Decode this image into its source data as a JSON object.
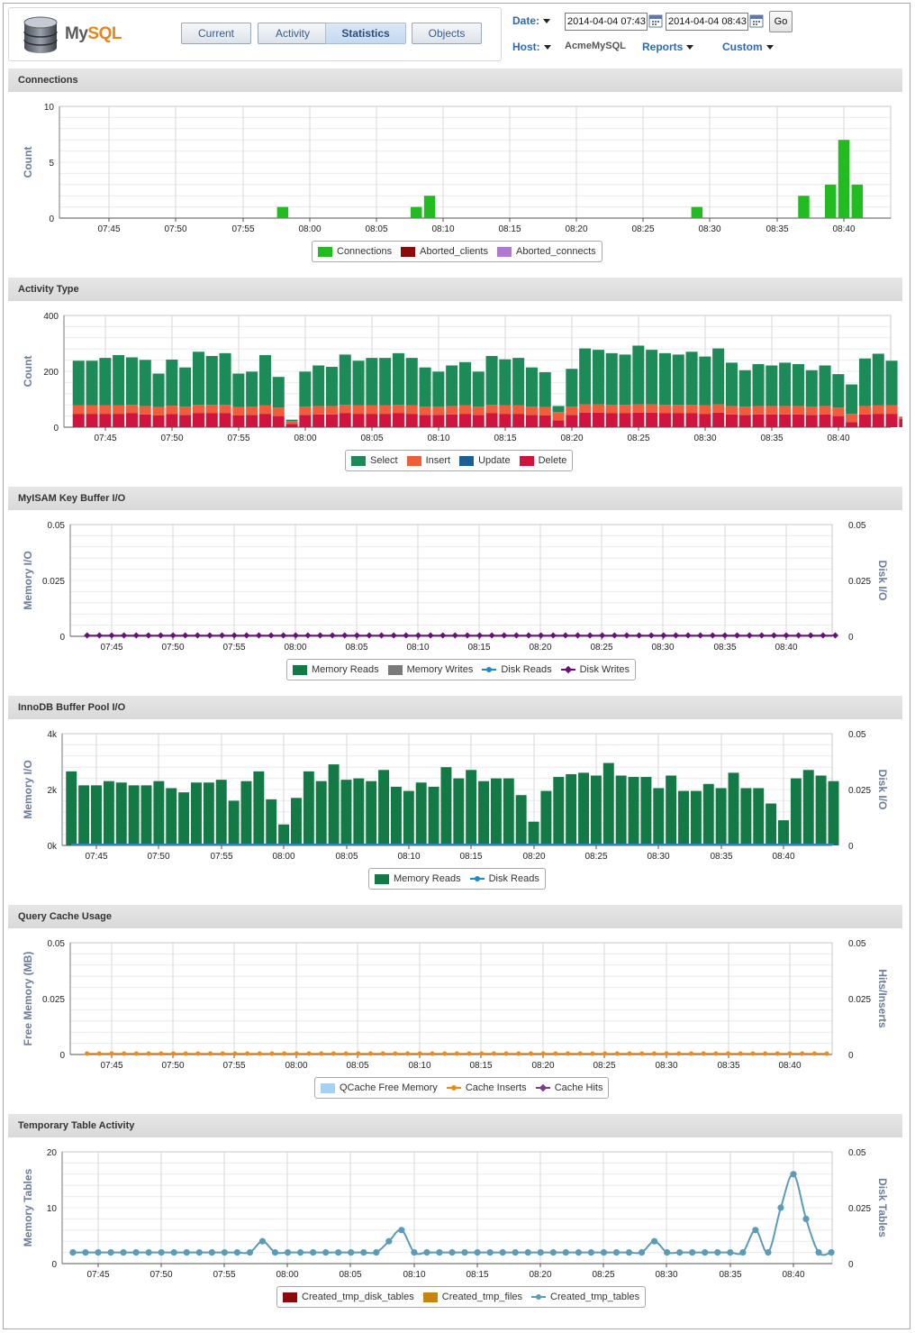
{
  "app": {
    "logo_prefix": "My",
    "logo_suffix": "SQL",
    "tabs": [
      {
        "label": "Current",
        "active": false
      },
      {
        "label": "Activity",
        "active": false
      },
      {
        "label": "Statistics",
        "active": true
      },
      {
        "label": "Objects",
        "active": false
      }
    ]
  },
  "controls": {
    "date_label": "Date:",
    "date_from": "2014-04-04 07:43",
    "date_to": "2014-04-04 08:43",
    "go_label": "Go",
    "host_label": "Host:",
    "host_value": "AcmeMySQL",
    "reports_label": "Reports",
    "custom_label": "Custom"
  },
  "colors": {
    "connections": "#22bb22",
    "aborted_clients": "#8b0a0a",
    "aborted_connects": "#b07ad0",
    "select": "#1d8b58",
    "insert": "#ef5d3b",
    "update": "#1b5f95",
    "delete": "#d0143e",
    "memory_reads": "#137a45",
    "memory_writes": "#7a7a7a",
    "disk_reads": "#1f8ac9",
    "disk_writes": "#6a0f7a",
    "qcache_free": "#a8d0f0",
    "cache_inserts": "#f08a17",
    "cache_hits": "#7b3e88",
    "tmp_disk": "#8b0a0a",
    "tmp_files": "#c88413",
    "tmp_tables": "#5b9bb7"
  },
  "x_ticks": [
    "07:45",
    "07:50",
    "07:55",
    "08:00",
    "08:05",
    "08:10",
    "08:15",
    "08:20",
    "08:25",
    "08:30",
    "08:35",
    "08:40"
  ],
  "chart_data": [
    {
      "type": "bar",
      "title": "Connections",
      "ylabel": "Count",
      "ylim": [
        0,
        10
      ],
      "yticks": [
        "0",
        "5",
        "10"
      ],
      "legend": [
        "Connections",
        "Aborted_clients",
        "Aborted_connects"
      ],
      "x_start_minute": 43,
      "series": [
        {
          "name": "Connections",
          "values": [
            0,
            0,
            0,
            0,
            0,
            0,
            0,
            0,
            0,
            0,
            0,
            0,
            0,
            0,
            0,
            1,
            0,
            0,
            0,
            0,
            0,
            0,
            0,
            0,
            0,
            1,
            2,
            0,
            0,
            0,
            0,
            0,
            0,
            0,
            0,
            0,
            0,
            0,
            0,
            0,
            0,
            0,
            0,
            0,
            0,
            0,
            1,
            0,
            0,
            0,
            0,
            0,
            0,
            0,
            2,
            0,
            3,
            7,
            3,
            0,
            0
          ]
        },
        {
          "name": "Aborted_clients",
          "values": []
        },
        {
          "name": "Aborted_connects",
          "values": []
        }
      ]
    },
    {
      "type": "bar",
      "title": "Activity Type",
      "ylabel": "Count",
      "ylim": [
        0,
        400
      ],
      "yticks": [
        "0",
        "200",
        "400"
      ],
      "legend": [
        "Select",
        "Insert",
        "Update",
        "Delete"
      ],
      "stacked": true,
      "x_start_minute": 43,
      "series": [
        {
          "name": "Select",
          "values": [
            160,
            160,
            170,
            180,
            170,
            165,
            120,
            165,
            140,
            190,
            175,
            185,
            120,
            125,
            180,
            110,
            5,
            125,
            145,
            140,
            180,
            160,
            170,
            170,
            185,
            170,
            140,
            125,
            145,
            155,
            125,
            175,
            165,
            170,
            140,
            125,
            22,
            135,
            200,
            195,
            185,
            180,
            210,
            195,
            185,
            180,
            190,
            175,
            200,
            155,
            130,
            150,
            145,
            155,
            150,
            130,
            145,
            120,
            105,
            170,
            185,
            160,
            0
          ]
        },
        {
          "name": "Insert",
          "values": [
            30,
            30,
            30,
            30,
            30,
            30,
            30,
            30,
            30,
            30,
            30,
            30,
            30,
            30,
            30,
            30,
            10,
            30,
            30,
            30,
            30,
            30,
            30,
            30,
            30,
            30,
            30,
            30,
            30,
            30,
            30,
            30,
            30,
            30,
            30,
            30,
            30,
            30,
            30,
            30,
            30,
            30,
            30,
            30,
            30,
            30,
            30,
            30,
            30,
            30,
            30,
            30,
            30,
            30,
            30,
            30,
            30,
            30,
            30,
            30,
            30,
            30,
            8
          ]
        },
        {
          "name": "Update",
          "values": []
        },
        {
          "name": "Delete",
          "values": [
            48,
            48,
            48,
            48,
            50,
            46,
            42,
            47,
            44,
            50,
            50,
            50,
            42,
            44,
            48,
            40,
            12,
            44,
            46,
            46,
            50,
            48,
            48,
            48,
            50,
            48,
            44,
            44,
            46,
            48,
            44,
            50,
            48,
            48,
            44,
            42,
            24,
            44,
            52,
            52,
            50,
            50,
            52,
            52,
            50,
            50,
            50,
            48,
            52,
            46,
            44,
            46,
            46,
            46,
            46,
            44,
            46,
            40,
            18,
            46,
            48,
            48,
            30
          ]
        }
      ]
    },
    {
      "type": "line",
      "title": "MyISAM Key Buffer I/O",
      "ylabel": "Memory I/O",
      "y2label": "Disk I/O",
      "ylim": [
        0,
        0.05
      ],
      "y2lim": [
        0,
        0.05
      ],
      "yticks": [
        "0",
        "0.025",
        "0.05"
      ],
      "y2ticks": [
        "0",
        "0.025",
        "0.05"
      ],
      "legend": [
        "Memory Reads",
        "Memory Writes",
        "Disk Reads",
        "Disk Writes"
      ],
      "x_start_minute": 43,
      "series": [
        {
          "name": "Memory Reads",
          "values": []
        },
        {
          "name": "Memory Writes",
          "values": []
        },
        {
          "name": "Disk Reads",
          "values": []
        },
        {
          "name": "Disk Writes",
          "constant": 0,
          "count": 62
        }
      ]
    },
    {
      "type": "bar",
      "title": "InnoDB Buffer Pool I/O",
      "ylabel": "Memory I/O",
      "y2label": "Disk I/O",
      "ylim": [
        0,
        4000
      ],
      "y2lim": [
        0,
        0.05
      ],
      "yticks": [
        "0k",
        "2k",
        "4k"
      ],
      "y2ticks": [
        "0",
        "0.025",
        "0.05"
      ],
      "legend": [
        "Memory Reads",
        "Disk Reads"
      ],
      "x_start_minute": 43,
      "series": [
        {
          "name": "Memory Reads",
          "values": [
            2650,
            2150,
            2150,
            2300,
            2250,
            2150,
            2150,
            2300,
            2050,
            1900,
            2250,
            2250,
            2350,
            1600,
            2300,
            2650,
            1650,
            750,
            1700,
            2650,
            2300,
            2900,
            2350,
            2400,
            2300,
            2700,
            2100,
            1950,
            2250,
            2100,
            2800,
            2400,
            2700,
            2300,
            2400,
            2400,
            1800,
            850,
            1950,
            2450,
            2550,
            2600,
            2500,
            2950,
            2500,
            2450,
            2450,
            2050,
            2500,
            1950,
            1950,
            2200,
            2050,
            2600,
            2050,
            2050,
            1500,
            900,
            2400,
            2700,
            2500,
            2300
          ]
        },
        {
          "name": "Disk Reads",
          "constant": 0,
          "count": 62
        }
      ]
    },
    {
      "type": "line",
      "title": "Query Cache Usage",
      "ylabel": "Free Memory (MB)",
      "y2label": "Hits/Inserts",
      "ylim": [
        0,
        0.05
      ],
      "y2lim": [
        0,
        0.05
      ],
      "yticks": [
        "0",
        "0.025",
        "0.05"
      ],
      "y2ticks": [
        "0",
        "0.025",
        "0.05"
      ],
      "legend": [
        "QCache Free Memory",
        "Cache Inserts",
        "Cache Hits"
      ],
      "x_start_minute": 43,
      "series": [
        {
          "name": "QCache Free Memory",
          "values": []
        },
        {
          "name": "Cache Inserts",
          "constant": 0,
          "count": 61
        },
        {
          "name": "Cache Hits",
          "values": []
        }
      ]
    },
    {
      "type": "line",
      "title": "Temporary Table Activity",
      "ylabel": "Memory Tables",
      "y2label": "Disk Tables",
      "ylim": [
        0,
        20
      ],
      "y2lim": [
        0,
        0.05
      ],
      "yticks": [
        "0",
        "10",
        "20"
      ],
      "y2ticks": [
        "0",
        "0.025",
        "0.05"
      ],
      "legend": [
        "Created_tmp_disk_tables",
        "Created_tmp_files",
        "Created_tmp_tables"
      ],
      "x_start_minute": 43,
      "series": [
        {
          "name": "Created_tmp_disk_tables",
          "values": []
        },
        {
          "name": "Created_tmp_files",
          "values": []
        },
        {
          "name": "Created_tmp_tables",
          "values": [
            2,
            2,
            2,
            2,
            2,
            2,
            2,
            2,
            2,
            2,
            2,
            2,
            2,
            2,
            2,
            4,
            2,
            2,
            2,
            2,
            2,
            2,
            2,
            2,
            2,
            4,
            6,
            2,
            2,
            2,
            2,
            2,
            2,
            2,
            2,
            2,
            2,
            2,
            2,
            2,
            2,
            2,
            2,
            2,
            2,
            2,
            4,
            2,
            2,
            2,
            2,
            2,
            2,
            2,
            6,
            2,
            10,
            16,
            8,
            2,
            2
          ]
        }
      ]
    }
  ]
}
